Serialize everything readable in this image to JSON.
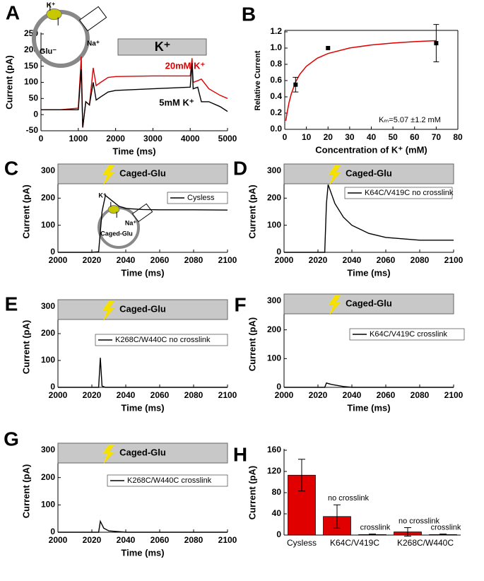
{
  "chart_data": [
    {
      "type": "line",
      "panel": "A",
      "xlabel": "Time (ms)",
      "ylabel": "Current (pA)",
      "xlim": [
        0,
        5000
      ],
      "xticks": [
        0,
        1000,
        2000,
        3000,
        4000,
        5000
      ],
      "ylim": [
        -50,
        250
      ],
      "yticks": [
        -50,
        0,
        50,
        100,
        150,
        200,
        250
      ],
      "x": [
        0,
        500,
        1000,
        1080,
        1120,
        1200,
        1300,
        1400,
        1480,
        1600,
        1800,
        2000,
        3000,
        4000,
        4050,
        4080,
        4200,
        4300,
        4500,
        4800,
        5000
      ],
      "series": [
        {
          "name": "20mM K⁺",
          "color": "#e00000",
          "values": [
            15,
            15,
            20,
            180,
            -40,
            40,
            30,
            145,
            90,
            100,
            115,
            118,
            120,
            120,
            175,
            100,
            105,
            110,
            80,
            60,
            50
          ]
        },
        {
          "name": "5mM K⁺",
          "color": "#000000",
          "values": [
            15,
            15,
            15,
            140,
            -40,
            40,
            30,
            100,
            45,
            55,
            70,
            75,
            80,
            85,
            160,
            80,
            85,
            40,
            40,
            25,
            10
          ]
        }
      ],
      "annotations": [
        "K⁺",
        "K⁺",
        "Na⁺",
        "Glu⁻"
      ]
    },
    {
      "type": "scatter",
      "panel": "B",
      "xlabel": "Concentration of K⁺ (mM)",
      "ylabel": "Relative Current",
      "xlim": [
        0,
        80
      ],
      "xticks": [
        0,
        10,
        20,
        30,
        40,
        50,
        60,
        70,
        80
      ],
      "ylim": [
        0,
        1.2
      ],
      "yticks": [
        {
          "value": 0,
          "label": "0.0"
        },
        {
          "value": 0.2,
          "label": "0.2"
        },
        {
          "value": 0.4,
          "label": "0.4"
        },
        {
          "value": 0.6,
          "label": "0.6"
        },
        {
          "value": 0.8,
          "label": "0.8"
        },
        {
          "value": 1,
          "label": "1.0"
        },
        {
          "value": 1.2,
          "label": "1.2"
        }
      ],
      "points": {
        "color": "#000000",
        "x": [
          5,
          20,
          70
        ],
        "values": [
          0.55,
          1.0,
          1.06
        ],
        "errors": [
          0.09,
          0,
          0.23
        ]
      },
      "fit": {
        "color": "#e00000",
        "x": [
          0.5,
          1,
          2,
          3,
          5,
          7,
          10,
          15,
          20,
          30,
          40,
          50,
          60,
          70
        ],
        "values": [
          0.105,
          0.193,
          0.331,
          0.435,
          0.581,
          0.679,
          0.776,
          0.875,
          0.933,
          1.001,
          1.038,
          1.062,
          1.079,
          1.091
        ]
      },
      "annotations": [
        "Kₘ=5.07 ±1.2 mM"
      ]
    },
    {
      "type": "line",
      "panel": "C",
      "xlabel": "Time (ms)",
      "ylabel": "Current (pA)",
      "stimulus": "Caged-Glu",
      "xlim": [
        2000,
        2100
      ],
      "xticks": [
        2000,
        2020,
        2040,
        2060,
        2080,
        2100
      ],
      "ylim": [
        0,
        300
      ],
      "yticks": [
        0,
        100,
        200,
        300
      ],
      "x": [
        2000,
        2020,
        2024,
        2026,
        2028,
        2032,
        2036,
        2040,
        2050,
        2060,
        2080,
        2100
      ],
      "series": [
        {
          "name": "Cysless",
          "color": "#000000",
          "values": [
            0,
            0,
            2,
            150,
            210,
            190,
            170,
            162,
            158,
            157,
            157,
            156
          ]
        }
      ],
      "annotations": [
        "K⁺",
        "Na⁺",
        "Caged-Glu"
      ]
    },
    {
      "type": "line",
      "panel": "D",
      "xlabel": "Time (ms)",
      "ylabel": "Current (pA)",
      "stimulus": "Caged-Glu",
      "xlim": [
        2000,
        2100
      ],
      "xticks": [
        2000,
        2020,
        2040,
        2060,
        2080,
        2100
      ],
      "ylim": [
        0,
        300
      ],
      "yticks": [
        0,
        100,
        200,
        300
      ],
      "x": [
        2000,
        2024,
        2025,
        2026,
        2030,
        2035,
        2040,
        2050,
        2060,
        2080,
        2100
      ],
      "series": [
        {
          "name": "K64C/V419C no crosslink",
          "color": "#000000",
          "values": [
            0,
            0,
            180,
            250,
            180,
            130,
            100,
            70,
            55,
            45,
            45
          ]
        }
      ]
    },
    {
      "type": "line",
      "panel": "E",
      "xlabel": "Time (ms)",
      "ylabel": "Current (pA)",
      "stimulus": "Caged-Glu",
      "xlim": [
        2000,
        2100
      ],
      "xticks": [
        2000,
        2020,
        2040,
        2060,
        2080,
        2100
      ],
      "ylim": [
        0,
        300
      ],
      "yticks": [
        0,
        100,
        200,
        300
      ],
      "x": [
        2000,
        2024,
        2025,
        2026,
        2028,
        2100
      ],
      "series": [
        {
          "name": "K268C/W440C no crosslink",
          "color": "#000000",
          "values": [
            0,
            0,
            110,
            5,
            0,
            0
          ]
        }
      ]
    },
    {
      "type": "line",
      "panel": "F",
      "xlabel": "Time (ms)",
      "ylabel": "Current (pA)",
      "stimulus": "Caged-Glu",
      "xlim": [
        2000,
        2100
      ],
      "xticks": [
        2000,
        2020,
        2040,
        2060,
        2080,
        2100
      ],
      "ylim": [
        0,
        300
      ],
      "yticks": [
        0,
        100,
        200,
        300
      ],
      "x": [
        2000,
        2024,
        2025,
        2028,
        2035,
        2040,
        2100
      ],
      "series": [
        {
          "name": "K64C/V419C crosslink",
          "color": "#000000",
          "values": [
            0,
            0,
            15,
            10,
            3,
            0,
            0
          ]
        }
      ]
    },
    {
      "type": "line",
      "panel": "G",
      "xlabel": "Time (ms)",
      "ylabel": "Current (pA)",
      "stimulus": "Caged-Glu",
      "xlim": [
        2000,
        2100
      ],
      "xticks": [
        2000,
        2020,
        2040,
        2060,
        2080,
        2100
      ],
      "ylim": [
        0,
        300
      ],
      "yticks": [
        0,
        100,
        200,
        300
      ],
      "x": [
        2000,
        2024,
        2025,
        2027,
        2030,
        2040,
        2100
      ],
      "series": [
        {
          "name": "K268C/W440C crosslink",
          "color": "#000000",
          "values": [
            0,
            0,
            40,
            15,
            5,
            0,
            0
          ]
        }
      ]
    },
    {
      "type": "bar",
      "panel": "H",
      "ylabel": "Current (pA)",
      "color": "#e00000",
      "ylim": [
        0,
        160
      ],
      "yticks": [
        0,
        40,
        80,
        120,
        160
      ],
      "x_labels": [
        "Cysless",
        "K64C/V419C",
        "K268C/W440C"
      ],
      "bar_labels": [
        null,
        "no crosslink",
        "crosslink",
        "no crosslink",
        "crosslink"
      ],
      "values": [
        113,
        35,
        1,
        6,
        1
      ],
      "errors": [
        30,
        22,
        1,
        8,
        1
      ]
    }
  ]
}
